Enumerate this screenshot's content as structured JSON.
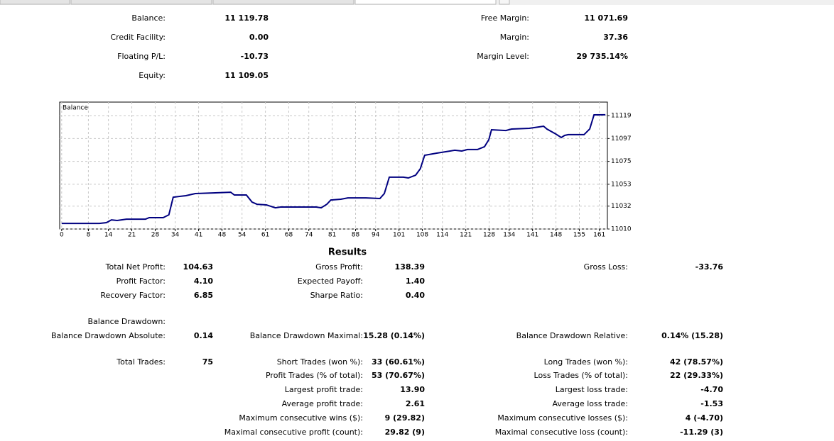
{
  "summary": {
    "left": [
      {
        "label": "Balance:",
        "value": "11 119.78"
      },
      {
        "label": "Credit Facility:",
        "value": "0.00"
      },
      {
        "label": "Floating P/L:",
        "value": "-10.73"
      },
      {
        "label": "Equity:",
        "value": "11 109.05"
      }
    ],
    "right": [
      {
        "label": "Free Margin:",
        "value": "11 071.69"
      },
      {
        "label": "Margin:",
        "value": "37.36"
      },
      {
        "label": "Margin Level:",
        "value": "29 735.14%"
      }
    ]
  },
  "chart": {
    "type": "line",
    "title": "Balance",
    "x": [
      0,
      11.3,
      13.4,
      14.9,
      16.6,
      19.4,
      25.1,
      26.2,
      30.4,
      32.1,
      33.4,
      37.2,
      40.0,
      45.3,
      50.6,
      51.7,
      55.3,
      57.0,
      58.5,
      61.3,
      64.0,
      65.5,
      76.2,
      77.7,
      79.4,
      80.6,
      83.6,
      85.7,
      91.1,
      95.3,
      96.6,
      98.1,
      102.3,
      103.8,
      106.0,
      107.4,
      108.7,
      112.3,
      117.7,
      119.8,
      121.5,
      124.5,
      126.6,
      127.9,
      128.7,
      133.0,
      134.7,
      140.0,
      144.3,
      145.3,
      147.9,
      149.6,
      150.6,
      151.7,
      156.4,
      158.1,
      159.4,
      162.8
    ],
    "values": [
      11015.4,
      11015.4,
      11016.1,
      11018.8,
      11018.2,
      11019.5,
      11019.5,
      11020.9,
      11020.9,
      11023.6,
      11040.6,
      11042.0,
      11044.1,
      11044.7,
      11045.4,
      11042.7,
      11042.7,
      11035.9,
      11033.8,
      11033.2,
      11030.4,
      11031.1,
      11031.1,
      11030.4,
      11033.8,
      11037.9,
      11038.6,
      11039.9,
      11039.9,
      11039.3,
      11044.1,
      11059.8,
      11059.8,
      11059.1,
      11061.8,
      11068.0,
      11080.9,
      11082.9,
      11085.7,
      11085.0,
      11086.4,
      11086.4,
      11089.1,
      11095.9,
      11105.4,
      11104.7,
      11106.1,
      11106.8,
      11108.8,
      11106.1,
      11101.4,
      11097.9,
      11100.0,
      11100.7,
      11100.7,
      11106.1,
      11119.7,
      11119.8
    ],
    "color": "#000080",
    "xlim": [
      -0.6,
      163.4
    ],
    "ylim": [
      11010,
      11132
    ],
    "xticks": [
      0,
      8,
      14,
      21,
      28,
      34,
      41,
      48,
      54,
      61,
      68,
      74,
      81,
      88,
      94,
      101,
      108,
      114,
      121,
      128,
      134,
      141,
      148,
      155,
      161
    ],
    "yticks": [
      11010,
      11032,
      11053,
      11075,
      11097,
      11119
    ],
    "grid": true
  },
  "results": {
    "title": "Results",
    "rows": [
      {
        "left": {
          "label": "Total Net Profit:",
          "value": "104.63"
        },
        "middle": {
          "label": "Gross Profit:",
          "value": "138.39"
        },
        "right": {
          "label": "Gross Loss:",
          "value": "-33.76"
        }
      },
      {
        "left": {
          "label": "Profit Factor:",
          "value": "4.10"
        },
        "middle": {
          "label": "Expected Payoff:",
          "value": "1.40"
        }
      },
      {
        "left": {
          "label": "Recovery Factor:",
          "value": "6.85"
        },
        "middle": {
          "label": "Sharpe Ratio:",
          "value": "0.40"
        }
      },
      {
        "left": {
          "label": "Balance Drawdown:"
        }
      },
      {
        "left": {
          "label": "Balance Drawdown Absolute:",
          "value": "0.14"
        },
        "middle": {
          "label": "Balance Drawdown Maximal:",
          "value": "15.28 (0.14%)"
        },
        "right": {
          "label": "Balance Drawdown Relative:",
          "value": "0.14% (15.28)"
        }
      },
      {
        "left": {
          "label": "Total Trades:",
          "value": "75"
        },
        "middle": {
          "label": "Short Trades (won %):",
          "value": "33 (60.61%)"
        },
        "right": {
          "label": "Long Trades (won %):",
          "value": "42 (78.57%)"
        }
      },
      {
        "middle": {
          "label": "Profit Trades (% of total):",
          "value": "53 (70.67%)"
        },
        "right": {
          "label": "Loss Trades (% of total):",
          "value": "22 (29.33%)"
        }
      },
      {
        "middle": {
          "label": "Largest profit trade:",
          "value": "13.90"
        },
        "right": {
          "label": "Largest loss trade:",
          "value": "-4.70"
        }
      },
      {
        "middle": {
          "label": "Average profit trade:",
          "value": "2.61"
        },
        "right": {
          "label": "Average loss trade:",
          "value": "-1.53"
        }
      },
      {
        "middle": {
          "label": "Maximum consecutive wins ($):",
          "value": "9 (29.82)"
        },
        "right": {
          "label": "Maximum consecutive losses ($):",
          "value": "4 (-4.70)"
        }
      },
      {
        "middle": {
          "label": "Maximal consecutive profit (count):",
          "value": "29.82 (9)"
        },
        "right": {
          "label": "Maximal consecutive loss (count):",
          "value": "-11.29 (3)"
        }
      }
    ]
  }
}
